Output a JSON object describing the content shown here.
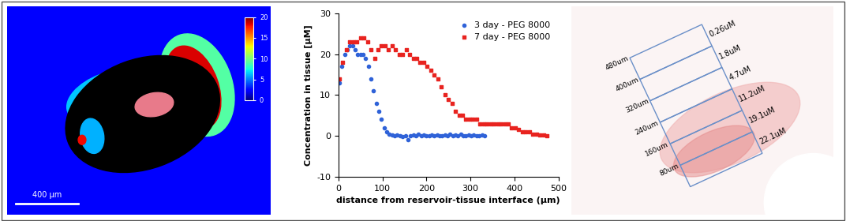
{
  "chart_data": [
    {
      "type": "image",
      "colorbar_range": [
        0,
        20
      ],
      "colorbar_ticks": [
        0,
        5,
        10,
        15,
        20
      ],
      "annotations": [
        "400 µm"
      ]
    },
    {
      "type": "scatter",
      "xlabel": "distance from reservoir-tissue interface (µm)",
      "ylabel": "Concentration in tissue [µM]",
      "xlim": [
        0,
        500
      ],
      "xticks": [
        0,
        100,
        200,
        300,
        400,
        500
      ],
      "ylim": [
        -10,
        30
      ],
      "yticks": [
        -10,
        0,
        10,
        20,
        30
      ],
      "legend": "upper right",
      "series": [
        {
          "name": "3 day - PEG 8000",
          "color": "#2f62d8",
          "marker": "circle",
          "x": [
            2,
            8,
            14,
            20,
            26,
            32,
            38,
            44,
            50,
            56,
            62,
            68,
            74,
            80,
            86,
            92,
            98,
            104,
            110,
            116,
            122,
            128,
            134,
            140,
            146,
            152,
            158,
            164,
            170,
            176,
            182,
            188,
            194,
            200,
            206,
            212,
            218,
            224,
            230,
            236,
            242,
            248,
            254,
            260,
            266,
            272,
            278,
            284,
            290,
            296,
            302,
            308,
            314,
            320,
            326,
            332
          ],
          "values": [
            13,
            17,
            20,
            21,
            22,
            22,
            21,
            20,
            20,
            20,
            19,
            17,
            14,
            11,
            8,
            6,
            4,
            2,
            1,
            0.5,
            0.3,
            0,
            0.2,
            0,
            -0.2,
            0,
            -1,
            0,
            0.3,
            0,
            0.4,
            0,
            0.2,
            0,
            0,
            0.3,
            0,
            0.2,
            0,
            0,
            0.3,
            0,
            0.5,
            0,
            0.2,
            0,
            0.4,
            0,
            0,
            0.3,
            0,
            0.2,
            0,
            0,
            0.2,
            0
          ]
        },
        {
          "name": "7 day - PEG 8000",
          "color": "#e8231f",
          "marker": "square",
          "x": [
            2,
            10,
            18,
            26,
            34,
            42,
            50,
            58,
            66,
            74,
            82,
            90,
            98,
            106,
            114,
            122,
            130,
            138,
            146,
            154,
            162,
            170,
            178,
            186,
            194,
            202,
            210,
            218,
            226,
            234,
            242,
            250,
            258,
            266,
            274,
            282,
            290,
            298,
            306,
            314,
            322,
            330,
            338,
            346,
            354,
            362,
            370,
            378,
            386,
            394,
            402,
            410,
            418,
            426,
            434,
            442,
            450,
            458,
            466,
            474
          ],
          "values": [
            14,
            18,
            21,
            23,
            23,
            23,
            24,
            24,
            23,
            21,
            19,
            21,
            22,
            22,
            21,
            22,
            21,
            20,
            20,
            21,
            20,
            19,
            19,
            18,
            18,
            17,
            16,
            15,
            14,
            12,
            10,
            9,
            8,
            6,
            5,
            5,
            4,
            4,
            4,
            4,
            3,
            3,
            3,
            3,
            3,
            3,
            3,
            3,
            3,
            2,
            2,
            1.5,
            1,
            1,
            1,
            0.5,
            0.5,
            0.3,
            0.2,
            0
          ]
        }
      ]
    },
    {
      "type": "image",
      "annotations": {
        "distances": [
          "80um",
          "160um",
          "240um",
          "320um",
          "400um",
          "480um"
        ],
        "concentrations": [
          "22.1uM",
          "19.1uM",
          "11.2uM",
          "4.7uM",
          "1.8uM",
          "0.26uM"
        ]
      }
    }
  ]
}
